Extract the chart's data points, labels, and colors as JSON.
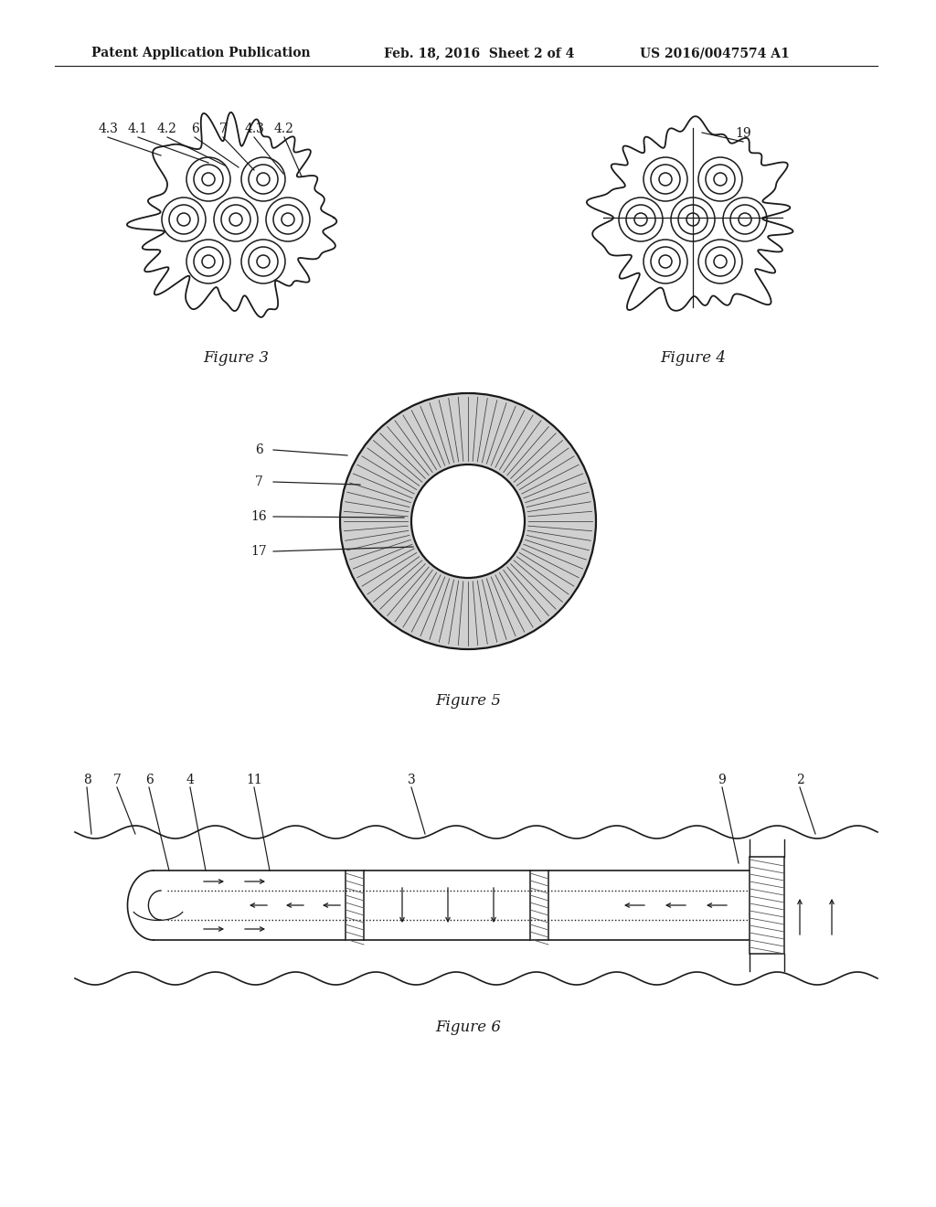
{
  "bg_color": "#ffffff",
  "lc": "#1a1a1a",
  "hdr1": "Patent Application Publication",
  "hdr2": "Feb. 18, 2016  Sheet 2 of 4",
  "hdr3": "US 2016/0047574 A1",
  "fig3_label": "Figure 3",
  "fig4_label": "Figure 4",
  "fig5_label": "Figure 5",
  "fig6_label": "Figure 6",
  "fig3_annotations": [
    "4.3",
    "4.1",
    "4.2",
    "6",
    "7",
    "4.3",
    "4.2"
  ],
  "fig4_annotations": [
    "19"
  ],
  "fig5_annotations": [
    "6",
    "7",
    "16",
    "17"
  ],
  "fig6_annotations": [
    "8",
    "7",
    "6",
    "4",
    "11",
    "3",
    "9",
    "2"
  ]
}
